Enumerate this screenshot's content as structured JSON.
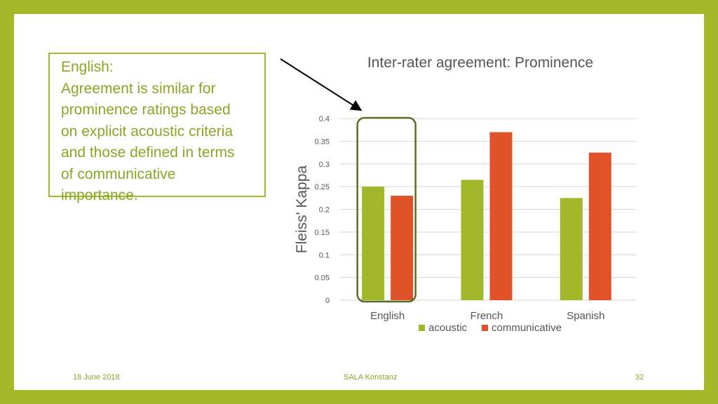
{
  "callout": {
    "lines": [
      "English:",
      "Agreement is similar for",
      "prominence ratings based",
      "on explicit acoustic criteria",
      "and those defined in terms",
      "of communicative",
      "importance."
    ]
  },
  "footer": {
    "date": "18 June 2018",
    "center": "SALA Konstanz",
    "page": "32"
  },
  "colors": {
    "accent": "#a4b92a",
    "acoustic": "#a2b82a",
    "communicative": "#e05228",
    "highlight_box": "#5c6e24"
  },
  "chart_data": {
    "type": "bar",
    "title": "Inter-rater agreement: Prominence",
    "xlabel": "",
    "ylabel": "Fleiss' Kappa",
    "categories": [
      "English",
      "French",
      "Spanish"
    ],
    "series": [
      {
        "name": "acoustic",
        "values": [
          0.25,
          0.265,
          0.225
        ]
      },
      {
        "name": "communicative",
        "values": [
          0.23,
          0.37,
          0.325
        ]
      }
    ],
    "ylim": [
      0,
      0.4
    ],
    "yticks": [
      "0",
      "0.05",
      "0.1",
      "0.15",
      "0.2",
      "0.25",
      "0.3",
      "0.35",
      "0.4"
    ],
    "grid": true,
    "legend": "bottom",
    "highlighted_category": "English"
  }
}
